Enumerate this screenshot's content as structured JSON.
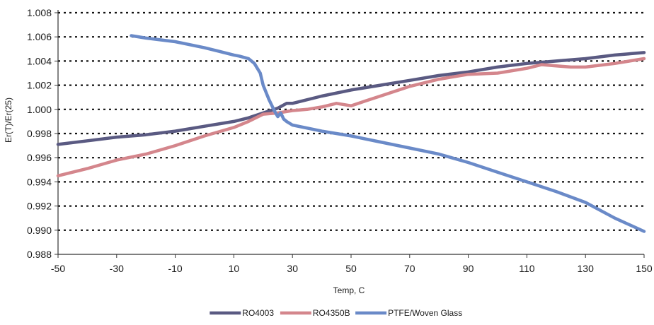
{
  "chart_data": {
    "type": "line",
    "title": "",
    "xlabel": "Temp, C",
    "ylabel": "Er(T)/Er(25)",
    "xlim": [
      -50,
      150
    ],
    "ylim": [
      0.988,
      1.008
    ],
    "x_ticks": [
      -50,
      -30,
      -10,
      10,
      30,
      50,
      70,
      90,
      110,
      130,
      150
    ],
    "x_tick_labels": [
      "-50",
      "-30",
      "-10",
      "10",
      "30",
      "50",
      "70",
      "90",
      "110",
      "130",
      "150"
    ],
    "y_ticks": [
      0.988,
      0.99,
      0.992,
      0.994,
      0.996,
      0.998,
      1.0,
      1.002,
      1.004,
      1.006,
      1.008
    ],
    "y_tick_labels": [
      "0.988",
      "0.990",
      "0.992",
      "0.994",
      "0.996",
      "0.998",
      "1.000",
      "1.002",
      "1.004",
      "1.006",
      "1.008"
    ],
    "grid": "horizontal dotted",
    "legend_position": "bottom",
    "series": [
      {
        "name": "RO4003",
        "color": "#5a5a82",
        "x": [
          -50,
          -40,
          -30,
          -20,
          -10,
          0,
          10,
          15,
          20,
          25,
          28,
          30,
          40,
          50,
          60,
          70,
          80,
          90,
          100,
          110,
          120,
          130,
          140,
          150
        ],
        "y": [
          0.9971,
          0.9974,
          0.9977,
          0.9979,
          0.9982,
          0.9986,
          0.999,
          0.9993,
          0.9997,
          1.0001,
          1.0005,
          1.0005,
          1.0011,
          1.0016,
          1.002,
          1.0024,
          1.0028,
          1.0031,
          1.0035,
          1.0038,
          1.004,
          1.0042,
          1.0045,
          1.0047
        ]
      },
      {
        "name": "RO4350B",
        "color": "#d4868c",
        "x": [
          -50,
          -40,
          -30,
          -20,
          -10,
          0,
          10,
          15,
          20,
          25,
          30,
          35,
          40,
          45,
          50,
          55,
          60,
          70,
          80,
          90,
          100,
          110,
          115,
          120,
          125,
          130,
          140,
          150
        ],
        "y": [
          0.9945,
          0.9951,
          0.9958,
          0.9963,
          0.997,
          0.9978,
          0.9985,
          0.999,
          0.9996,
          0.9997,
          0.9999,
          1.0,
          1.0002,
          1.0005,
          1.0003,
          1.0007,
          1.0011,
          1.0019,
          1.0025,
          1.0029,
          1.003,
          1.0034,
          1.0037,
          1.0036,
          1.0035,
          1.0035,
          1.0038,
          1.0042
        ]
      },
      {
        "name": "PTFE/Woven Glass",
        "color": "#6a8ac8",
        "x": [
          -25,
          -20,
          -10,
          0,
          5,
          10,
          12,
          15,
          17,
          19,
          20,
          22,
          24,
          25,
          26,
          27,
          28,
          30,
          40,
          50,
          60,
          70,
          80,
          90,
          100,
          110,
          120,
          130,
          140,
          150
        ],
        "y": [
          1.0061,
          1.0059,
          1.0056,
          1.0051,
          1.0048,
          1.0045,
          1.0044,
          1.0042,
          1.0038,
          1.003,
          1.002,
          1.0008,
          0.9998,
          0.9994,
          0.9997,
          0.9992,
          0.999,
          0.9987,
          0.9982,
          0.9978,
          0.9973,
          0.9968,
          0.9963,
          0.9956,
          0.9948,
          0.994,
          0.9932,
          0.9923,
          0.991,
          0.9899
        ]
      }
    ]
  }
}
